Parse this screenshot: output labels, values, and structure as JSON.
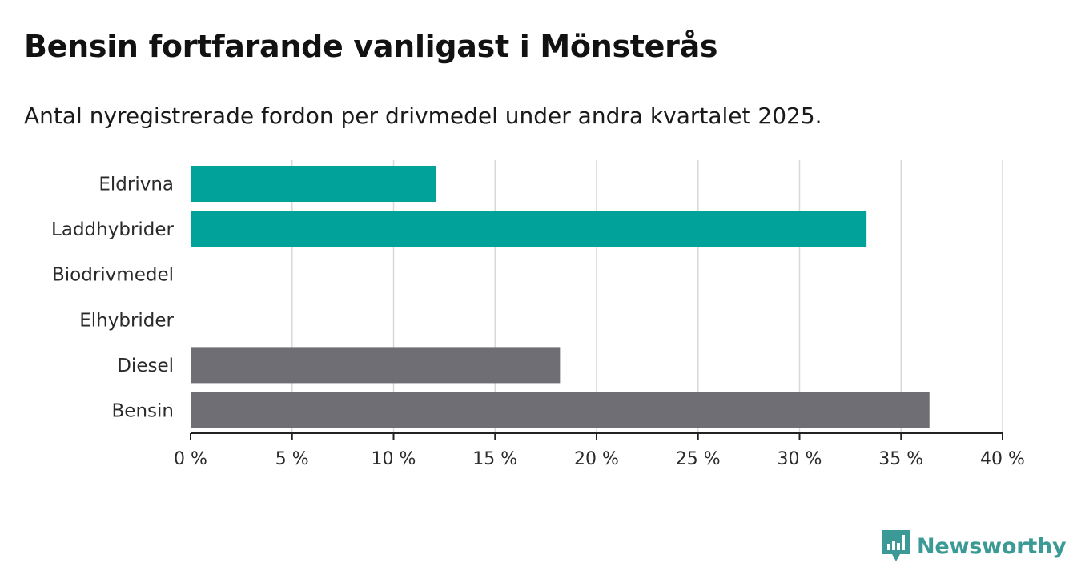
{
  "title": "Bensin fortfarande vanligast i Mönsterås",
  "subtitle": "Antal nyregistrerade fordon per drivmedel under andra kvartalet 2025.",
  "brand": {
    "name": "Newsworthy",
    "icon": "bar-chart-logo-icon",
    "color": "#3c9a96"
  },
  "chart_data": {
    "type": "bar",
    "orientation": "horizontal",
    "categories": [
      "Eldrivna",
      "Laddhybrider",
      "Biodrivmedel",
      "Elhybrider",
      "Diesel",
      "Bensin"
    ],
    "values": [
      12.1,
      33.3,
      0,
      0,
      18.2,
      36.4
    ],
    "bar_colors": [
      "#00a29a",
      "#00a29a",
      "#00a29a",
      "#00a29a",
      "#6e6e74",
      "#6e6e74"
    ],
    "xlim": [
      0,
      40
    ],
    "xticks": [
      0,
      5,
      10,
      15,
      20,
      25,
      30,
      35,
      40
    ],
    "tick_labels": [
      "0 %",
      "5 %",
      "10 %",
      "15 %",
      "20 %",
      "25 %",
      "30 %",
      "35 %",
      "40 %"
    ],
    "grid": true,
    "title": "Bensin fortfarande vanligast i Mönsterås",
    "xlabel": "",
    "ylabel": ""
  }
}
